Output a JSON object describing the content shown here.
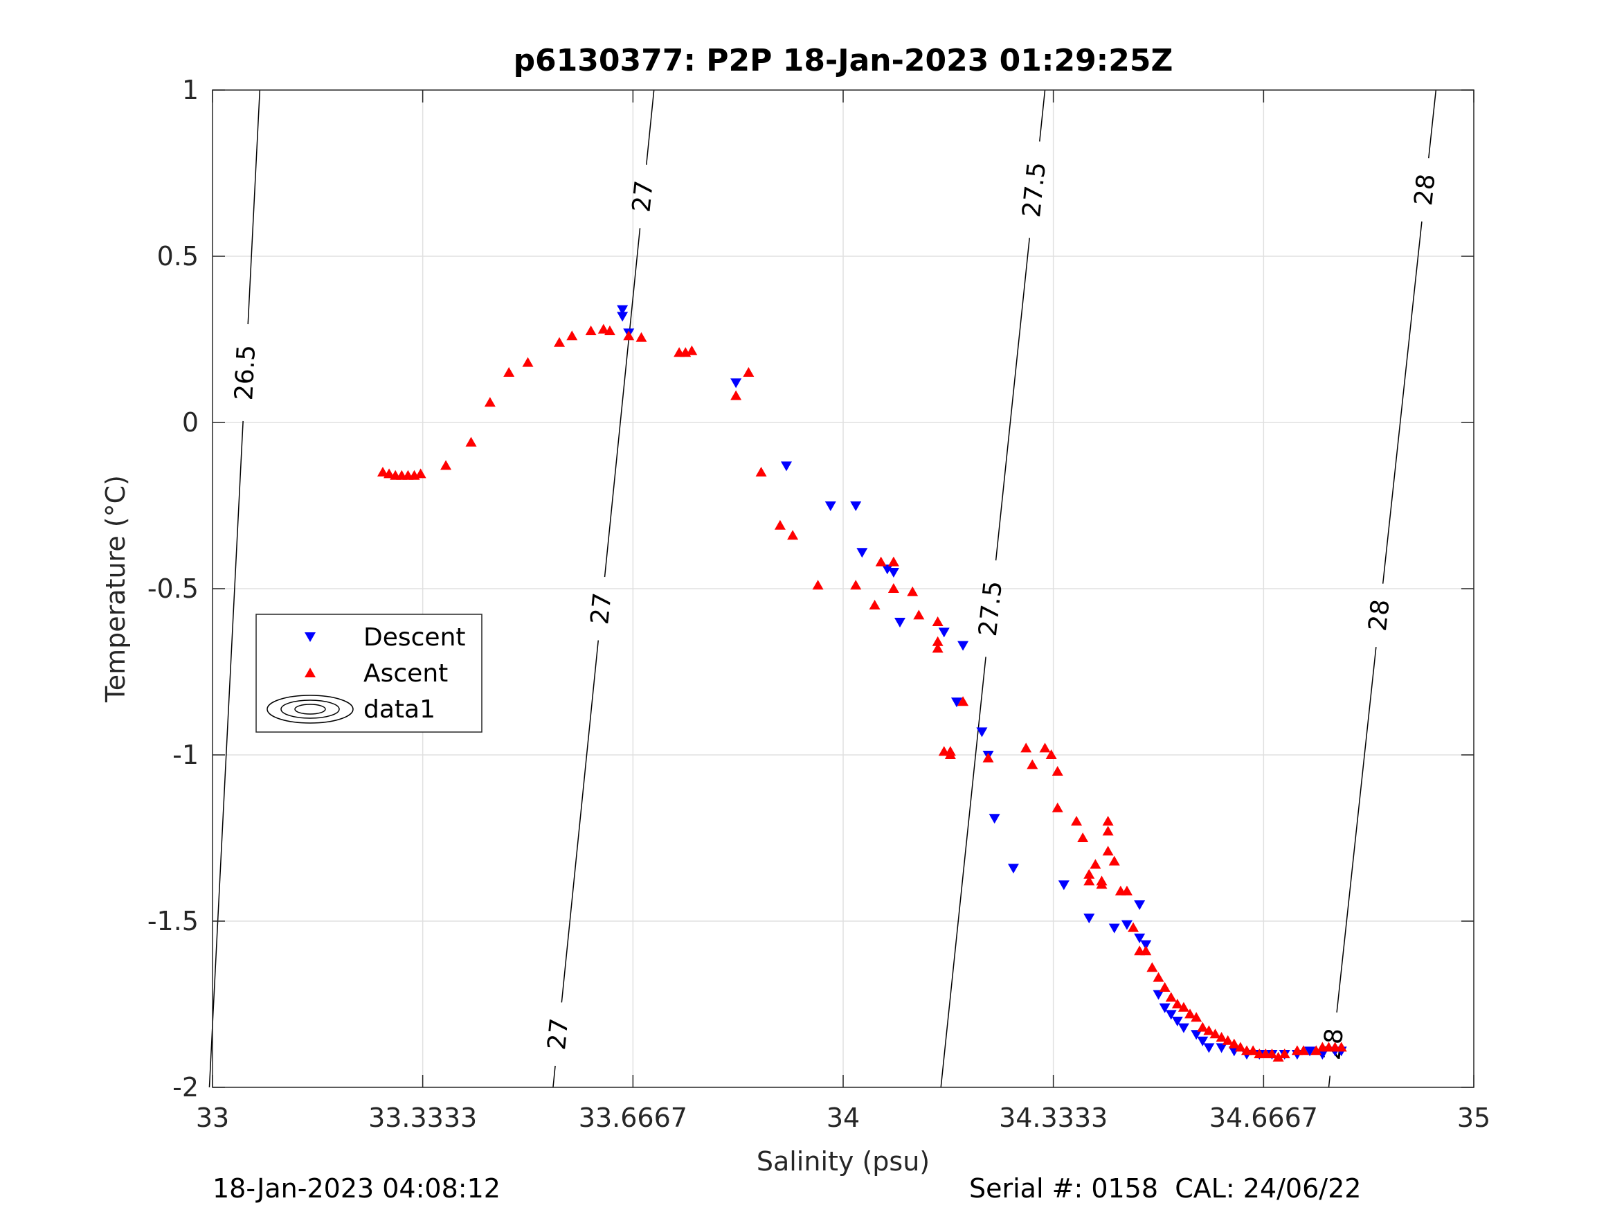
{
  "chart_data": {
    "type": "scatter",
    "title": "p6130377: P2P 18-Jan-2023 01:29:25Z",
    "xlabel": "Salinity (psu)",
    "ylabel": "Temperature (°C)",
    "xlim": [
      33,
      35
    ],
    "ylim": [
      -2,
      1
    ],
    "grid": true,
    "xticks": [
      33,
      33.3333,
      33.6667,
      34,
      34.3333,
      34.6667,
      35
    ],
    "xtick_labels": [
      "33",
      "33.3333",
      "33.6667",
      "34",
      "34.3333",
      "34.6667",
      "35"
    ],
    "yticks": [
      1,
      0.5,
      0,
      -0.5,
      -1,
      -1.5,
      -2
    ],
    "ytick_labels": [
      "1",
      "0.5",
      "0",
      "-0.5",
      "-1",
      "-1.5",
      "-2"
    ],
    "legend_position": "middle-left",
    "legend": [
      "Descent",
      "Ascent",
      "data1"
    ],
    "series": [
      {
        "name": "Descent",
        "marker": "triangle-down",
        "color": "#0000ff",
        "points": [
          [
            33.65,
            0.34
          ],
          [
            33.65,
            0.32
          ],
          [
            33.66,
            0.27
          ],
          [
            33.83,
            0.12
          ],
          [
            33.91,
            -0.13
          ],
          [
            33.98,
            -0.25
          ],
          [
            34.02,
            -0.25
          ],
          [
            34.03,
            -0.39
          ],
          [
            34.07,
            -0.44
          ],
          [
            34.08,
            -0.45
          ],
          [
            34.09,
            -0.6
          ],
          [
            34.16,
            -0.63
          ],
          [
            34.18,
            -0.84
          ],
          [
            34.19,
            -0.67
          ],
          [
            34.22,
            -0.93
          ],
          [
            34.23,
            -1.0
          ],
          [
            34.24,
            -1.19
          ],
          [
            34.27,
            -1.34
          ],
          [
            34.35,
            -1.39
          ],
          [
            34.39,
            -1.49
          ],
          [
            34.43,
            -1.52
          ],
          [
            34.45,
            -1.51
          ],
          [
            34.47,
            -1.45
          ],
          [
            34.47,
            -1.55
          ],
          [
            34.48,
            -1.57
          ],
          [
            34.5,
            -1.72
          ],
          [
            34.51,
            -1.76
          ],
          [
            34.52,
            -1.78
          ],
          [
            34.53,
            -1.8
          ],
          [
            34.54,
            -1.82
          ],
          [
            34.56,
            -1.84
          ],
          [
            34.57,
            -1.86
          ],
          [
            34.58,
            -1.88
          ],
          [
            34.6,
            -1.88
          ],
          [
            34.62,
            -1.89
          ],
          [
            34.64,
            -1.9
          ],
          [
            34.66,
            -1.9
          ],
          [
            34.68,
            -1.9
          ],
          [
            34.7,
            -1.9
          ],
          [
            34.72,
            -1.9
          ],
          [
            34.74,
            -1.89
          ],
          [
            34.76,
            -1.9
          ],
          [
            34.78,
            -1.89
          ],
          [
            34.79,
            -1.89
          ]
        ]
      },
      {
        "name": "Ascent",
        "marker": "triangle-up",
        "color": "#ff0000",
        "points": [
          [
            33.27,
            -0.15
          ],
          [
            33.28,
            -0.155
          ],
          [
            33.29,
            -0.16
          ],
          [
            33.3,
            -0.16
          ],
          [
            33.31,
            -0.16
          ],
          [
            33.32,
            -0.16
          ],
          [
            33.33,
            -0.155
          ],
          [
            33.37,
            -0.13
          ],
          [
            33.41,
            -0.06
          ],
          [
            33.44,
            0.06
          ],
          [
            33.47,
            0.15
          ],
          [
            33.5,
            0.18
          ],
          [
            33.55,
            0.24
          ],
          [
            33.57,
            0.26
          ],
          [
            33.6,
            0.275
          ],
          [
            33.62,
            0.28
          ],
          [
            33.63,
            0.275
          ],
          [
            33.66,
            0.26
          ],
          [
            33.68,
            0.255
          ],
          [
            33.74,
            0.21
          ],
          [
            33.75,
            0.21
          ],
          [
            33.76,
            0.215
          ],
          [
            33.83,
            0.08
          ],
          [
            33.85,
            0.15
          ],
          [
            33.87,
            -0.15
          ],
          [
            33.9,
            -0.31
          ],
          [
            33.92,
            -0.34
          ],
          [
            33.96,
            -0.49
          ],
          [
            34.02,
            -0.49
          ],
          [
            34.05,
            -0.55
          ],
          [
            34.06,
            -0.42
          ],
          [
            34.08,
            -0.42
          ],
          [
            34.08,
            -0.5
          ],
          [
            34.11,
            -0.51
          ],
          [
            34.12,
            -0.58
          ],
          [
            34.15,
            -0.6
          ],
          [
            34.15,
            -0.66
          ],
          [
            34.15,
            -0.68
          ],
          [
            34.16,
            -0.99
          ],
          [
            34.17,
            -1.0
          ],
          [
            34.17,
            -0.99
          ],
          [
            34.19,
            -0.84
          ],
          [
            34.23,
            -1.01
          ],
          [
            34.29,
            -0.98
          ],
          [
            34.3,
            -1.03
          ],
          [
            34.32,
            -0.98
          ],
          [
            34.33,
            -1.0
          ],
          [
            34.34,
            -1.05
          ],
          [
            34.34,
            -1.16
          ],
          [
            34.37,
            -1.2
          ],
          [
            34.38,
            -1.25
          ],
          [
            34.39,
            -1.36
          ],
          [
            34.39,
            -1.38
          ],
          [
            34.4,
            -1.33
          ],
          [
            34.41,
            -1.38
          ],
          [
            34.41,
            -1.39
          ],
          [
            34.42,
            -1.2
          ],
          [
            34.42,
            -1.23
          ],
          [
            34.42,
            -1.29
          ],
          [
            34.43,
            -1.32
          ],
          [
            34.44,
            -1.41
          ],
          [
            34.45,
            -1.41
          ],
          [
            34.46,
            -1.52
          ],
          [
            34.47,
            -1.59
          ],
          [
            34.48,
            -1.59
          ],
          [
            34.49,
            -1.64
          ],
          [
            34.5,
            -1.67
          ],
          [
            34.51,
            -1.7
          ],
          [
            34.52,
            -1.73
          ],
          [
            34.53,
            -1.75
          ],
          [
            34.54,
            -1.76
          ],
          [
            34.55,
            -1.78
          ],
          [
            34.56,
            -1.79
          ],
          [
            34.57,
            -1.82
          ],
          [
            34.58,
            -1.83
          ],
          [
            34.59,
            -1.84
          ],
          [
            34.6,
            -1.85
          ],
          [
            34.61,
            -1.86
          ],
          [
            34.62,
            -1.87
          ],
          [
            34.63,
            -1.88
          ],
          [
            34.64,
            -1.89
          ],
          [
            34.65,
            -1.89
          ],
          [
            34.66,
            -1.9
          ],
          [
            34.67,
            -1.9
          ],
          [
            34.68,
            -1.9
          ],
          [
            34.69,
            -1.91
          ],
          [
            34.7,
            -1.9
          ],
          [
            34.72,
            -1.89
          ],
          [
            34.73,
            -1.89
          ],
          [
            34.75,
            -1.89
          ],
          [
            34.76,
            -1.88
          ],
          [
            34.77,
            -1.88
          ],
          [
            34.78,
            -1.88
          ],
          [
            34.79,
            -1.88
          ]
        ]
      }
    ],
    "contours": [
      {
        "label": "26.5",
        "s_at_top": 33.075,
        "s_at_bottom": 32.995,
        "label_temps": [
          0.15
        ]
      },
      {
        "label": "27",
        "s_at_top": 33.7,
        "s_at_bottom": 33.54,
        "label_temps": [
          0.68,
          -0.56,
          -1.84
        ]
      },
      {
        "label": "27.5",
        "s_at_top": 34.32,
        "s_at_bottom": 34.155,
        "label_temps": [
          0.7,
          -0.56
        ]
      },
      {
        "label": "28",
        "s_at_top": 34.94,
        "s_at_bottom": 34.77,
        "label_temps": [
          0.7,
          -0.58,
          -1.87
        ]
      }
    ]
  },
  "footer": {
    "timestamp": "18-Jan-2023 04:08:12",
    "serial_cal": "Serial #: 0158  CAL: 24/06/22"
  },
  "colors": {
    "descent": "#0000ff",
    "ascent": "#ff0000",
    "grid": "#e0e0e0",
    "axis": "#262626"
  }
}
